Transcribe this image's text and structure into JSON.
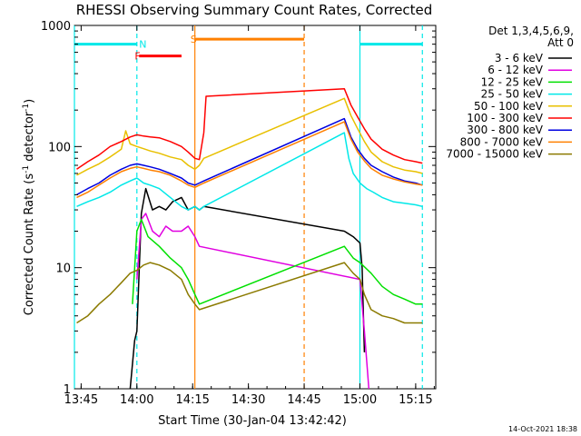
{
  "chart_data": {
    "type": "line",
    "title": "RHESSI Observing Summary Count Rates, Corrected",
    "xlabel": "Start Time (30-Jan-04 13:42:42)",
    "ylabel_main": "Corrected Count Rate (s",
    "ylabel_sup1": "-1",
    "ylabel_mid": " detector",
    "ylabel_sup2": "-1",
    "ylabel_end": ")",
    "yscale": "log",
    "xlim": [
      13.72,
      15.34
    ],
    "ylim": [
      1,
      1000
    ],
    "x_ticks": [
      {
        "label": "13:45",
        "value": 13.75
      },
      {
        "label": "14:00",
        "value": 14.0
      },
      {
        "label": "14:15",
        "value": 14.25
      },
      {
        "label": "14:30",
        "value": 14.5
      },
      {
        "label": "14:45",
        "value": 14.75
      },
      {
        "label": "15:00",
        "value": 15.0
      },
      {
        "label": "15:15",
        "value": 15.25
      }
    ],
    "y_ticks": [
      {
        "label": "1",
        "value": 1
      },
      {
        "label": "10",
        "value": 10
      },
      {
        "label": "100",
        "value": 100
      },
      {
        "label": "1000",
        "value": 1000
      }
    ],
    "legend": {
      "position": "right",
      "header1": "Det 1,3,4,5,6,9,",
      "header2": "Att 0"
    },
    "series": [
      {
        "name": "3 - 6 keV",
        "color": "#000000",
        "x": [
          13.97,
          13.99,
          14.0,
          14.02,
          14.04,
          14.07,
          14.1,
          14.13,
          14.16,
          14.2,
          14.23,
          14.26,
          14.28,
          14.3,
          14.93,
          14.97,
          15.0,
          15.01,
          15.02
        ],
        "y": [
          1,
          2.5,
          3,
          28,
          45,
          30,
          32,
          30,
          35,
          38,
          30,
          32,
          30,
          32,
          20,
          18,
          16,
          10,
          2
        ]
      },
      {
        "name": "6 - 12 keV",
        "color": "#e000e0",
        "x": [
          14.0,
          14.02,
          14.04,
          14.07,
          14.1,
          14.13,
          14.16,
          14.2,
          14.23,
          14.26,
          14.28,
          15.0,
          15.02,
          15.04
        ],
        "y": [
          8,
          25,
          28,
          20,
          18,
          22,
          20,
          20,
          22,
          18,
          15,
          8,
          3,
          1
        ]
      },
      {
        "name": "12 - 25 keV",
        "color": "#00e000",
        "x": [
          13.98,
          14.0,
          14.02,
          14.05,
          14.1,
          14.15,
          14.2,
          14.23,
          14.26,
          14.28,
          14.93,
          14.97,
          15.0,
          15.05,
          15.1,
          15.15,
          15.2,
          15.25,
          15.28
        ],
        "y": [
          5,
          20,
          25,
          18,
          15,
          12,
          10,
          8,
          6,
          5,
          15,
          12,
          11,
          9,
          7,
          6,
          5.5,
          5,
          5
        ]
      },
      {
        "name": "25 - 50 keV",
        "color": "#00e8e8",
        "x": [
          13.73,
          13.78,
          13.83,
          13.88,
          13.93,
          13.97,
          14.0,
          14.03,
          14.06,
          14.1,
          14.15,
          14.2,
          14.23,
          14.26,
          14.28,
          14.3,
          14.93,
          14.95,
          14.97,
          15.0,
          15.03,
          15.06,
          15.1,
          15.15,
          15.2,
          15.25,
          15.28
        ],
        "y": [
          32,
          35,
          38,
          42,
          48,
          52,
          55,
          50,
          48,
          45,
          38,
          32,
          30,
          32,
          30,
          32,
          130,
          80,
          60,
          50,
          45,
          42,
          38,
          35,
          34,
          33,
          32
        ]
      },
      {
        "name": "50 - 100 keV",
        "color": "#e8c000",
        "x": [
          13.73,
          13.78,
          13.83,
          13.88,
          13.93,
          13.95,
          13.97,
          14.0,
          14.03,
          14.06,
          14.1,
          14.15,
          14.2,
          14.23,
          14.26,
          14.28,
          14.3,
          14.93,
          14.96,
          14.99,
          15.02,
          15.05,
          15.1,
          15.15,
          15.2,
          15.25,
          15.28
        ],
        "y": [
          58,
          65,
          72,
          82,
          95,
          135,
          105,
          100,
          96,
          92,
          88,
          82,
          78,
          70,
          65,
          70,
          80,
          250,
          180,
          140,
          110,
          90,
          75,
          68,
          64,
          62,
          60
        ]
      },
      {
        "name": "100 - 300 keV",
        "color": "#ff0000",
        "x": [
          13.73,
          13.78,
          13.83,
          13.88,
          13.93,
          13.97,
          14.0,
          14.03,
          14.06,
          14.1,
          14.15,
          14.2,
          14.23,
          14.26,
          14.28,
          14.3,
          14.31,
          14.93,
          14.96,
          14.99,
          15.02,
          15.05,
          15.1,
          15.15,
          15.2,
          15.25,
          15.28
        ],
        "y": [
          65,
          75,
          85,
          100,
          110,
          120,
          125,
          122,
          120,
          118,
          110,
          100,
          90,
          80,
          78,
          130,
          260,
          300,
          220,
          175,
          140,
          115,
          95,
          85,
          78,
          75,
          73
        ]
      },
      {
        "name": "300 - 800 keV",
        "color": "#0000e0",
        "x": [
          13.73,
          13.78,
          13.83,
          13.88,
          13.93,
          13.97,
          14.0,
          14.03,
          14.06,
          14.1,
          14.15,
          14.2,
          14.23,
          14.26,
          14.28,
          14.3,
          14.93,
          14.96,
          14.99,
          15.02,
          15.05,
          15.1,
          15.15,
          15.2,
          15.25,
          15.28
        ],
        "y": [
          40,
          45,
          50,
          58,
          65,
          70,
          72,
          70,
          68,
          65,
          60,
          55,
          50,
          48,
          50,
          52,
          170,
          120,
          95,
          80,
          70,
          62,
          56,
          52,
          50,
          48
        ]
      },
      {
        "name": "800 - 7000 keV",
        "color": "#ff8000",
        "x": [
          13.73,
          13.78,
          13.83,
          13.88,
          13.93,
          13.97,
          14.0,
          14.03,
          14.06,
          14.1,
          14.15,
          14.2,
          14.23,
          14.26,
          14.28,
          14.3,
          14.93,
          14.96,
          14.99,
          15.02,
          15.05,
          15.1,
          15.15,
          15.2,
          15.25,
          15.28
        ],
        "y": [
          38,
          42,
          48,
          55,
          62,
          66,
          68,
          66,
          64,
          62,
          58,
          52,
          48,
          46,
          48,
          50,
          160,
          115,
          90,
          76,
          66,
          58,
          54,
          51,
          49,
          48
        ]
      },
      {
        "name": "7000 - 15000 keV",
        "color": "#8b7a00",
        "x": [
          13.73,
          13.78,
          13.83,
          13.88,
          13.93,
          13.97,
          14.0,
          14.03,
          14.06,
          14.1,
          14.15,
          14.2,
          14.23,
          14.26,
          14.28,
          14.93,
          14.97,
          15.0,
          15.02,
          15.05,
          15.1,
          15.15,
          15.2,
          15.25,
          15.28
        ],
        "y": [
          3.5,
          4,
          5,
          6,
          7.5,
          9,
          9.5,
          10.5,
          11,
          10.5,
          9.5,
          8,
          6,
          5,
          4.5,
          11,
          9,
          8,
          6,
          4.5,
          4,
          3.8,
          3.5,
          3.5,
          3.5
        ]
      }
    ],
    "annotations": [
      {
        "label": "N",
        "x": 14.01,
        "y": 700,
        "color": "#00e8e8"
      },
      {
        "label": "F",
        "x": 13.99,
        "y": 560,
        "color": "#ff0000"
      },
      {
        "label": "S",
        "x": 14.24,
        "y": 770,
        "color": "#ff8000"
      }
    ],
    "intervals": [
      {
        "kind": "night",
        "x0": 13.72,
        "x1": 14.0,
        "y": 700,
        "color": "#00e8e8"
      },
      {
        "kind": "night",
        "x0": 15.0,
        "x1": 15.28,
        "y": 700,
        "color": "#00e8e8"
      },
      {
        "kind": "flare",
        "x0": 14.01,
        "x1": 14.2,
        "y": 560,
        "color": "#ff0000"
      },
      {
        "kind": "saa",
        "x0": 14.26,
        "x1": 14.75,
        "y": 770,
        "color": "#ff8000"
      }
    ],
    "vlines": [
      {
        "x": 13.72,
        "color": "#00e8e8",
        "style": "solid"
      },
      {
        "x": 14.0,
        "color": "#00e8e8",
        "style": "dashed"
      },
      {
        "x": 15.0,
        "color": "#00e8e8",
        "style": "solid"
      },
      {
        "x": 15.28,
        "color": "#00e8e8",
        "style": "dashed"
      },
      {
        "x": 14.26,
        "color": "#ff8000",
        "style": "solid"
      },
      {
        "x": 14.75,
        "color": "#ff8000",
        "style": "dashed"
      }
    ],
    "timestamp": "14-Oct-2021 18:38"
  }
}
